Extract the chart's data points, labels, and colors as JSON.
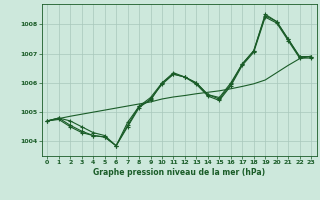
{
  "title": "Graphe pression niveau de la mer (hPa)",
  "background_color": "#cde8dc",
  "grid_color": "#a8c8bc",
  "line_color": "#1a5c28",
  "xlim": [
    -0.5,
    23.5
  ],
  "ylim": [
    1003.5,
    1008.7
  ],
  "yticks": [
    1004,
    1005,
    1006,
    1007,
    1008
  ],
  "xticks": [
    0,
    1,
    2,
    3,
    4,
    5,
    6,
    7,
    8,
    9,
    10,
    11,
    12,
    13,
    14,
    15,
    16,
    17,
    18,
    19,
    20,
    21,
    22,
    23
  ],
  "series_with_markers": [
    [
      1004.7,
      1004.8,
      1004.7,
      1004.5,
      1004.3,
      1004.2,
      1003.85,
      1004.65,
      1005.2,
      1005.4,
      1006.0,
      1006.35,
      1006.2,
      1006.0,
      1005.6,
      1005.5,
      1006.0,
      1006.65,
      1007.1,
      1008.35,
      1008.1,
      1007.5,
      1006.9,
      1006.9
    ],
    [
      1004.7,
      1004.75,
      1004.5,
      1004.3,
      1004.2,
      1004.15,
      1003.85,
      1004.5,
      1005.15,
      1005.45,
      1005.95,
      1006.3,
      1006.2,
      1005.95,
      1005.55,
      1005.4,
      1005.9,
      1006.6,
      1007.05,
      1008.25,
      1008.05,
      1007.45,
      1006.85,
      1006.85
    ],
    [
      1004.7,
      1004.8,
      1004.55,
      1004.35,
      1004.2,
      1004.15,
      1003.85,
      1004.55,
      1005.2,
      1005.5,
      1006.0,
      1006.3,
      1006.2,
      1006.0,
      1005.6,
      1005.45,
      1005.95,
      1006.65,
      1007.1,
      1008.3,
      1008.1,
      1007.5,
      1006.9,
      1006.9
    ]
  ],
  "series_smooth": [
    [
      1004.7,
      1004.78,
      1004.86,
      1004.93,
      1005.0,
      1005.07,
      1005.14,
      1005.21,
      1005.28,
      1005.35,
      1005.45,
      1005.52,
      1005.57,
      1005.63,
      1005.68,
      1005.73,
      1005.8,
      1005.88,
      1005.97,
      1006.1,
      1006.35,
      1006.6,
      1006.83,
      1006.92
    ]
  ]
}
